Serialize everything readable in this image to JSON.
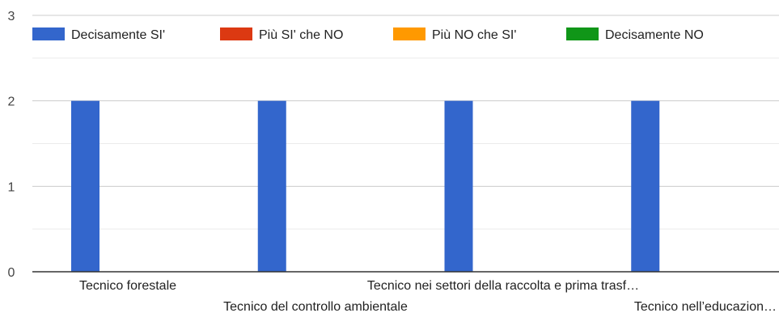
{
  "chart_data": {
    "type": "bar",
    "title": "",
    "xlabel": "",
    "ylabel": "",
    "ylim": [
      0,
      3
    ],
    "yticks": [
      0,
      1,
      2,
      3
    ],
    "grid": true,
    "legend_position": "top",
    "categories": [
      "Tecnico forestale",
      "Tecnico del controllo ambientale",
      "Tecnico nei settori della raccolta e prima trasf…",
      "Tecnico nell’educazion…"
    ],
    "series": [
      {
        "name": "Decisamente SI'",
        "color": "#3366cc",
        "values": [
          2,
          2,
          2,
          2
        ]
      },
      {
        "name": "Più SI' che NO",
        "color": "#dc3912",
        "values": [
          0,
          0,
          0,
          0
        ]
      },
      {
        "name": "Più NO che SI'",
        "color": "#ff9900",
        "values": [
          0,
          0,
          0,
          0
        ]
      },
      {
        "name": "Decisamente NO",
        "color": "#109618",
        "values": [
          0,
          0,
          0,
          0
        ]
      }
    ]
  }
}
